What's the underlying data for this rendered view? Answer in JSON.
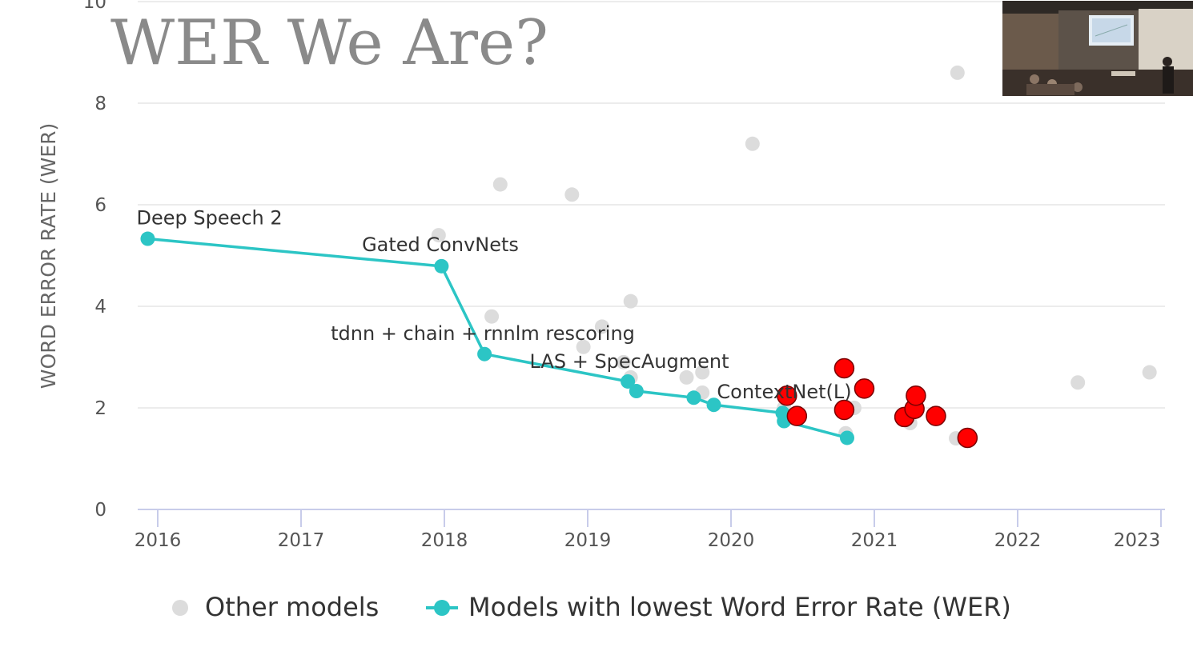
{
  "slide": {
    "title": "WER We Are?"
  },
  "chart_data": {
    "type": "scatter",
    "xlabel": "",
    "ylabel": "WORD ERROR RATE (WER)",
    "xlim": [
      2015.85,
      2023.0
    ],
    "ylim": [
      0,
      10
    ],
    "x_ticks": [
      "2016",
      "2017",
      "2018",
      "2019",
      "2020",
      "2021",
      "2022",
      "2023"
    ],
    "y_ticks": [
      "0",
      "2",
      "4",
      "6",
      "8",
      "10"
    ],
    "grid": true,
    "legend_position": "bottom",
    "series": [
      {
        "name": "Other models",
        "color": "#dcdcdc",
        "points": [
          [
            2017.96,
            5.4
          ],
          [
            2018.33,
            3.8
          ],
          [
            2018.39,
            6.4
          ],
          [
            2018.89,
            6.2
          ],
          [
            2018.97,
            3.2
          ],
          [
            2019.1,
            3.6
          ],
          [
            2019.25,
            2.9
          ],
          [
            2019.3,
            4.1
          ],
          [
            2019.3,
            2.6
          ],
          [
            2019.69,
            2.6
          ],
          [
            2019.8,
            2.7
          ],
          [
            2019.8,
            2.3
          ],
          [
            2020.15,
            7.2
          ],
          [
            2020.37,
            2.0
          ],
          [
            2020.8,
            1.5
          ],
          [
            2020.86,
            2.0
          ],
          [
            2021.25,
            1.7
          ],
          [
            2021.57,
            1.4
          ],
          [
            2021.58,
            8.6
          ],
          [
            2022.42,
            2.5
          ],
          [
            2022.92,
            2.7
          ]
        ]
      },
      {
        "name": "Models with lowest Word Error Rate (WER)",
        "color": "#2cc5c5",
        "points": [
          [
            2015.93,
            5.33
          ],
          [
            2017.98,
            4.79
          ],
          [
            2018.28,
            3.06
          ],
          [
            2019.28,
            2.52
          ],
          [
            2019.34,
            2.33
          ],
          [
            2019.74,
            2.2
          ],
          [
            2019.88,
            2.06
          ],
          [
            2020.36,
            1.9
          ],
          [
            2020.37,
            1.74
          ],
          [
            2020.81,
            1.41
          ]
        ],
        "labels": [
          {
            "x": 2015.93,
            "y": 5.33,
            "text": "Deep Speech 2"
          },
          {
            "x": 2017.98,
            "y": 4.79,
            "text": "Gated ConvNets"
          },
          {
            "x": 2018.28,
            "y": 3.06,
            "text": "tdnn + chain + rnnlm rescoring"
          },
          {
            "x": 2019.28,
            "y": 2.52,
            "text": "LAS + SpecAugment"
          },
          {
            "x": 2019.88,
            "y": 2.06,
            "text": "ContextNet(L)"
          }
        ]
      },
      {
        "name": "",
        "color": "#ff0000",
        "points": [
          [
            2020.39,
            2.24
          ],
          [
            2020.46,
            1.84
          ],
          [
            2020.79,
            2.78
          ],
          [
            2020.79,
            1.96
          ],
          [
            2020.93,
            2.38
          ],
          [
            2021.21,
            1.82
          ],
          [
            2021.28,
            1.98
          ],
          [
            2021.29,
            2.24
          ],
          [
            2021.43,
            1.84
          ],
          [
            2021.65,
            1.41
          ]
        ]
      }
    ]
  },
  "video_inset": {
    "description_icon": "video-thumbnail"
  }
}
